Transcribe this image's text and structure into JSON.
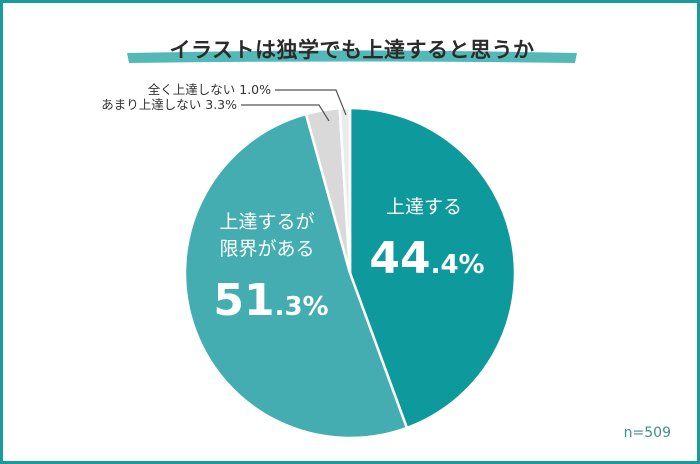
{
  "chart_data": {
    "type": "pie",
    "title": "イラストは独学でも上達すると思うか",
    "note": "n=509",
    "slices": [
      {
        "label": "上達する",
        "value": 44.4,
        "color": "#0e9a9c",
        "big": "44",
        "small": ".4%"
      },
      {
        "label": "上達するが限界がある",
        "label_lines": [
          "上達するが",
          "限界がある"
        ],
        "value": 51.3,
        "color": "#43adb1",
        "big": "51",
        "small": ".3%"
      },
      {
        "label": "あまり上達しない",
        "value": 3.3,
        "color": "#d9d9d9",
        "text": "あまり上達しない 3.3%"
      },
      {
        "label": "全く上達しない",
        "value": 1.0,
        "color": "#ebebeb",
        "text": "全く上達しない 1.0%"
      }
    ]
  },
  "colors": {
    "frame": "#1a9a9b",
    "title_underline": "#54b9b6",
    "leader": "#555555"
  }
}
